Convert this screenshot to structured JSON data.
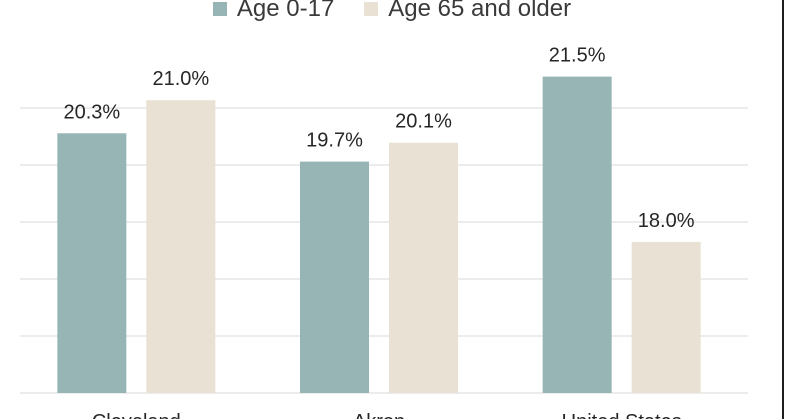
{
  "chart_data": {
    "type": "bar",
    "categories": [
      "Cleveland",
      "Akron",
      "United States"
    ],
    "series": [
      {
        "name": "Age 0-17",
        "color": "#97b5b5",
        "values": [
          20.3,
          19.7,
          21.5
        ],
        "labels": [
          "20.3%",
          "19.7%",
          "21.5%"
        ]
      },
      {
        "name": "Age 65 and older",
        "color": "#e9e1d3",
        "values": [
          21.0,
          20.1,
          18.0
        ],
        "labels": [
          "21.0%",
          "20.1%",
          "18.0%"
        ]
      }
    ],
    "ylim": [
      14.8,
      22.0
    ],
    "grid": true,
    "legend_position": "top"
  }
}
